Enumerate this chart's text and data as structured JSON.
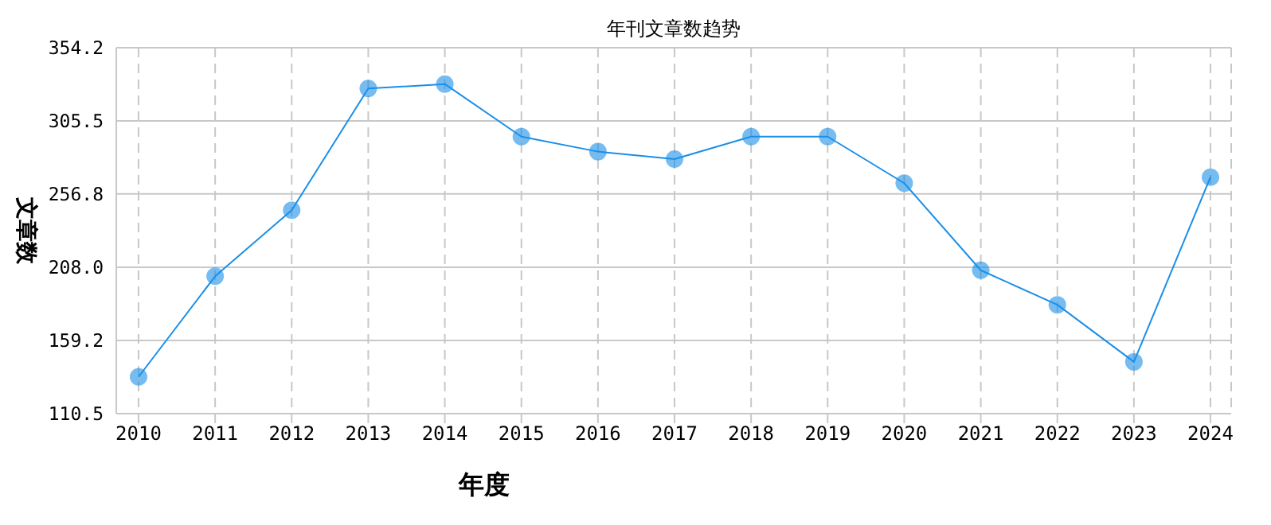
{
  "chart_data": {
    "type": "line",
    "title": "年刊文章数趋势",
    "xlabel": "年度",
    "ylabel": "文章数",
    "categories": [
      "2010",
      "2011",
      "2012",
      "2013",
      "2014",
      "2015",
      "2016",
      "2017",
      "2018",
      "2019",
      "2020",
      "2021",
      "2022",
      "2023",
      "2024"
    ],
    "series": [
      {
        "color": "#1a8fe8",
        "values": [
          135,
          202,
          246,
          327,
          330,
          295,
          285,
          280,
          295,
          295,
          264,
          206,
          183,
          145,
          268
        ]
      }
    ],
    "ylim": [
      110.5,
      354.2
    ],
    "yticks": [
      110.5,
      159.2,
      {
        "value": 208,
        "label": "208.0"
      },
      256.8,
      305.5,
      354.2
    ],
    "grid": true,
    "marker": "circle",
    "line_style": "solid"
  }
}
